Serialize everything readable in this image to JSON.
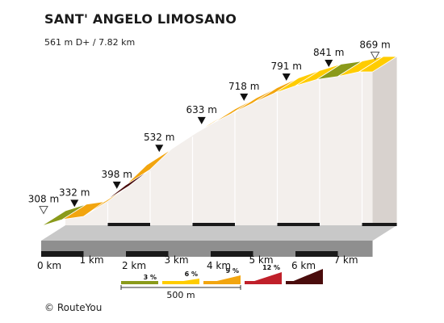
{
  "header": {
    "title": "SANT' ANGELO LIMOSANO",
    "subtitle": "561 m D+ / 7.82 km"
  },
  "footer": {
    "credit": "© RouteYou"
  },
  "chart_data": {
    "type": "area",
    "title": "SANT' ANGELO LIMOSANO",
    "subtitle": "561 m D+ / 7.82 km",
    "xlabel": "",
    "ylabel": "",
    "xlim": [
      0,
      7.82
    ],
    "ylim": [
      308,
      869
    ],
    "x_ticks": [
      "0 km",
      "1 km",
      "2 km",
      "3 km",
      "4 km",
      "5 km",
      "6 km",
      "7 km"
    ],
    "profile": [
      {
        "x": 0.0,
        "y": 308
      },
      {
        "x": 0.5,
        "y": 332
      },
      {
        "x": 1.0,
        "y": 343
      },
      {
        "x": 1.5,
        "y": 398
      },
      {
        "x": 2.0,
        "y": 458
      },
      {
        "x": 2.5,
        "y": 532
      },
      {
        "x": 3.0,
        "y": 583
      },
      {
        "x": 3.5,
        "y": 633
      },
      {
        "x": 4.0,
        "y": 678
      },
      {
        "x": 4.5,
        "y": 718
      },
      {
        "x": 5.0,
        "y": 756
      },
      {
        "x": 5.5,
        "y": 791
      },
      {
        "x": 6.0,
        "y": 818
      },
      {
        "x": 6.5,
        "y": 841
      },
      {
        "x": 7.0,
        "y": 852
      },
      {
        "x": 7.5,
        "y": 869
      },
      {
        "x": 7.82,
        "y": 869
      }
    ],
    "segment_colors": [
      "#8a9a1a",
      "#f2a50f",
      "#f2a50f",
      "#4a0c0c",
      "#f2a50f",
      "#f2a50f",
      "#4a0c0c",
      "#f2a50f",
      "#f2a50f",
      "#f2a50f",
      "#f2a50f",
      "#ffcc00",
      "#ffcc00",
      "#8a9a1a",
      "#ffcc00",
      "#ffcc00"
    ],
    "markers": [
      {
        "x": 0.0,
        "label": "308 m",
        "style": "open"
      },
      {
        "x": 0.5,
        "label": "332 m",
        "style": "filled"
      },
      {
        "x": 1.5,
        "label": "398 m",
        "style": "filled"
      },
      {
        "x": 2.5,
        "label": "532 m",
        "style": "filled"
      },
      {
        "x": 3.5,
        "label": "633 m",
        "style": "filled"
      },
      {
        "x": 4.5,
        "label": "718 m",
        "style": "filled"
      },
      {
        "x": 5.5,
        "label": "791 m",
        "style": "filled"
      },
      {
        "x": 6.5,
        "label": "841 m",
        "style": "filled"
      },
      {
        "x": 7.82,
        "label": "869 m",
        "style": "open"
      }
    ],
    "legend": {
      "items": [
        {
          "label": "3 %",
          "color": "#8a9a1a"
        },
        {
          "label": "6 %",
          "color": "#ffcc00"
        },
        {
          "label": "9 %",
          "color": "#f2a50f"
        },
        {
          "label": "12 %",
          "color": "#c0202a"
        },
        {
          "label": "",
          "color": "#4a0c0c"
        }
      ],
      "scale_label": "500 m"
    },
    "colors": {
      "side": "#f3efec",
      "side_dark": "#d8d2ce",
      "base_front": "#8f8f8f",
      "base_side": "#c8c8c8",
      "axis_bar": "#1a1a1a"
    }
  }
}
